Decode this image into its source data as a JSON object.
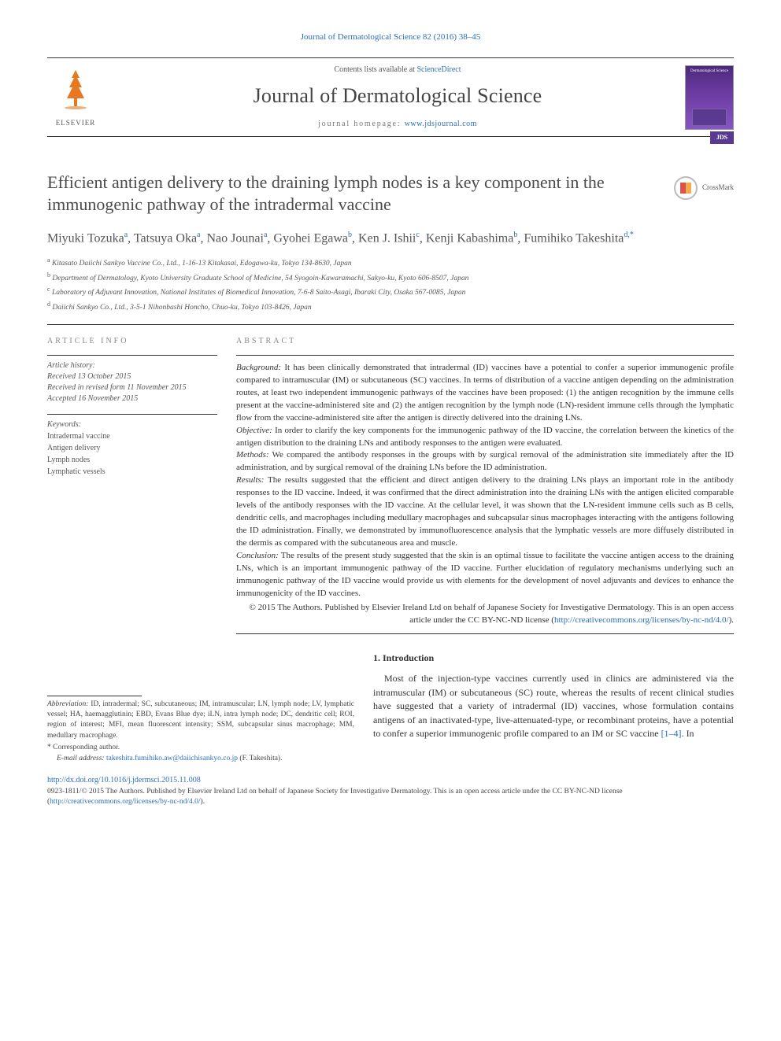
{
  "top_citation": "Journal of Dermatological Science 82 (2016) 38–45",
  "masthead": {
    "contents_prefix": "Contents lists available at ",
    "contents_link": "ScienceDirect",
    "journal_name": "Journal of Dermatological Science",
    "homepage_prefix": "journal homepage: ",
    "homepage_link": "www.jdsjournal.com",
    "publisher": "ELSEVIER",
    "cover_label": "Dermatological Science",
    "cover_badge": "JDS"
  },
  "crossmark": "CrossMark",
  "title": "Efficient antigen delivery to the draining lymph nodes is a key component in the immunogenic pathway of the intradermal vaccine",
  "authors": [
    {
      "name": "Miyuki Tozuka",
      "aff": "a"
    },
    {
      "name": "Tatsuya Oka",
      "aff": "a"
    },
    {
      "name": "Nao Jounai",
      "aff": "a"
    },
    {
      "name": "Gyohei Egawa",
      "aff": "b"
    },
    {
      "name": "Ken J. Ishii",
      "aff": "c"
    },
    {
      "name": "Kenji Kabashima",
      "aff": "b"
    },
    {
      "name": "Fumihiko Takeshita",
      "aff": "d,",
      "corr": "*"
    }
  ],
  "affiliations": [
    {
      "sup": "a",
      "text": "Kitasato Daiichi Sankyo Vaccine Co., Ltd., 1-16-13 Kitakasai, Edogawa-ku, Tokyo 134-8630, Japan"
    },
    {
      "sup": "b",
      "text": "Department of Dermatology, Kyoto University Graduate School of Medicine, 54 Syogoin-Kawaramachi, Sakyo-ku, Kyoto 606-8507, Japan"
    },
    {
      "sup": "c",
      "text": "Laboratory of Adjuvant Innovation, National Institutes of Biomedical Innovation, 7-6-8 Saito-Asagi, Ibaraki City, Osaka 567-0085, Japan"
    },
    {
      "sup": "d",
      "text": "Daiichi Sankyo Co., Ltd., 3-5-1 Nihonbashi Honcho, Chuo-ku, Tokyo 103-8426, Japan"
    }
  ],
  "article_info": {
    "heading": "ARTICLE INFO",
    "history_label": "Article history:",
    "received": "Received 13 October 2015",
    "revised": "Received in revised form 11 November 2015",
    "accepted": "Accepted 16 November 2015",
    "keywords_label": "Keywords:",
    "keywords": [
      "Intradermal vaccine",
      "Antigen delivery",
      "Lymph nodes",
      "Lymphatic vessels"
    ]
  },
  "abstract": {
    "heading": "ABSTRACT",
    "background_label": "Background:",
    "background": " It has been clinically demonstrated that intradermal (ID) vaccines have a potential to confer a superior immunogenic profile compared to intramuscular (IM) or subcutaneous (SC) vaccines. In terms of distribution of a vaccine antigen depending on the administration routes, at least two independent immunogenic pathways of the vaccines have been proposed: (1) the antigen recognition by the immune cells present at the vaccine-administered site and (2) the antigen recognition by the lymph node (LN)-resident immune cells through the lymphatic flow from the vaccine-administered site after the antigen is directly delivered into the draining LNs.",
    "objective_label": "Objective:",
    "objective": " In order to clarify the key components for the immunogenic pathway of the ID vaccine, the correlation between the kinetics of the antigen distribution to the draining LNs and antibody responses to the antigen were evaluated.",
    "methods_label": "Methods:",
    "methods": " We compared the antibody responses in the groups with by surgical removal of the administration site immediately after the ID administration, and by surgical removal of the draining LNs before the ID administration.",
    "results_label": "Results:",
    "results": " The results suggested that the efficient and direct antigen delivery to the draining LNs plays an important role in the antibody responses to the ID vaccine. Indeed, it was confirmed that the direct administration into the draining LNs with the antigen elicited comparable levels of the antibody responses with the ID vaccine. At the cellular level, it was shown that the LN-resident immune cells such as B cells, dendritic cells, and macrophages including medullary macrophages and subcapsular sinus macrophages interacting with the antigens following the ID administration. Finally, we demonstrated by immunofluorescence analysis that the lymphatic vessels are more diffusely distributed in the dermis as compared with the subcutaneous area and muscle.",
    "conclusion_label": "Conclusion:",
    "conclusion": " The results of the present study suggested that the skin is an optimal tissue to facilitate the vaccine antigen access to the draining LNs, which is an important immunogenic pathway of the ID vaccine. Further elucidation of regulatory mechanisms underlying such an immunogenic pathway of the ID vaccine would provide us with elements for the development of novel adjuvants and devices to enhance the immunogenicity of the ID vaccines.",
    "copyright": "© 2015 The Authors. Published by Elsevier Ireland Ltd on behalf of Japanese Society for Investigative Dermatology. This is an open access article under the CC BY-NC-ND license (",
    "license_link": "http://creativecommons.org/licenses/by-nc-nd/4.0/",
    "copyright_close": ")."
  },
  "introduction": {
    "heading": "1. Introduction",
    "text": "Most of the injection-type vaccines currently used in clinics are administered via the intramuscular (IM) or subcutaneous (SC) route, whereas the results of recent clinical studies have suggested that a variety of intradermal (ID) vaccines, whose formulation contains antigens of an inactivated-type, live-attenuated-type, or recombinant proteins, have a potential to confer a superior immunogenic profile compared to an IM or SC vaccine ",
    "ref": "[1–4]",
    "text_tail": ". In"
  },
  "footnotes": {
    "abbrev_label": "Abbreviation:",
    "abbrev": " ID, intradermal; SC, subcutaneous; IM, intramuscular; LN, lymph node; LV, lymphatic vessel; HA, haemagglutinin; EBD, Evans Blue dye; iLN, intra lymph node; DC, dendritic cell; ROI, region of interest; MFI, mean fluorescent intensity; SSM, subcapsular sinus macrophage; MM, medullary macrophage.",
    "corr_label": "* Corresponding author.",
    "email_label": "E-mail address: ",
    "email": "takeshita.fumihiko.aw@daiichisankyo.co.jp",
    "email_name": " (F. Takeshita)."
  },
  "doi": "http://dx.doi.org/10.1016/j.jdermsci.2015.11.008",
  "bottom": {
    "issn": "0923-1811/",
    "text": "© 2015 The Authors. Published by Elsevier Ireland Ltd on behalf of Japanese Society for Investigative Dermatology. This is an open access article under the CC BY-NC-ND license (",
    "link": "http://creativecommons.org/licenses/by-nc-nd/4.0/",
    "close": ")."
  },
  "colors": {
    "link": "#2a6ebb",
    "publisher_orange": "#e87722",
    "text": "#333333",
    "muted": "#555555",
    "cover_gradient_top": "#4a2a7a",
    "cover_gradient_bottom": "#8555c4"
  }
}
